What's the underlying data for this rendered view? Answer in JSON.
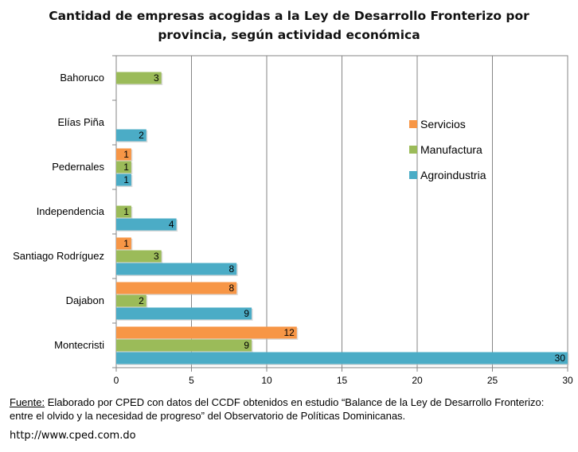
{
  "chart_data": {
    "type": "bar",
    "orientation": "horizontal",
    "title_lines": [
      "Cantidad de empresas acogidas a la Ley de Desarrollo Fronterizo por",
      "provincia, según actividad económica"
    ],
    "categories": [
      "Bahoruco",
      "Elías Piña",
      "Pedernales",
      "Independencia",
      "Santiago Rodríguez",
      "Dajabon",
      "Montecristi"
    ],
    "series": [
      {
        "name": "Servicios",
        "color": "#F79646",
        "values": [
          null,
          null,
          1,
          null,
          1,
          8,
          12
        ]
      },
      {
        "name": "Manufactura",
        "color": "#9BBB59",
        "values": [
          3,
          null,
          1,
          1,
          3,
          2,
          9
        ]
      },
      {
        "name": "Agroindustria",
        "color": "#4BACC6",
        "values": [
          null,
          2,
          1,
          4,
          8,
          9,
          30
        ]
      }
    ],
    "xlim": [
      0,
      30
    ],
    "xticks": [
      "0",
      "5",
      "10",
      "15",
      "20",
      "25",
      "30"
    ],
    "grid": true,
    "legend_position": "right"
  },
  "source": {
    "label": "Fuente:",
    "text": " Elaborado por CPED con datos del CCDF obtenidos en estudio “Balance de la Ley de Desarrollo Fronterizo: entre el olvido y la necesidad de progreso” del Observatorio de Políticas Dominicanas."
  },
  "url": "http://www.cped.com.do"
}
